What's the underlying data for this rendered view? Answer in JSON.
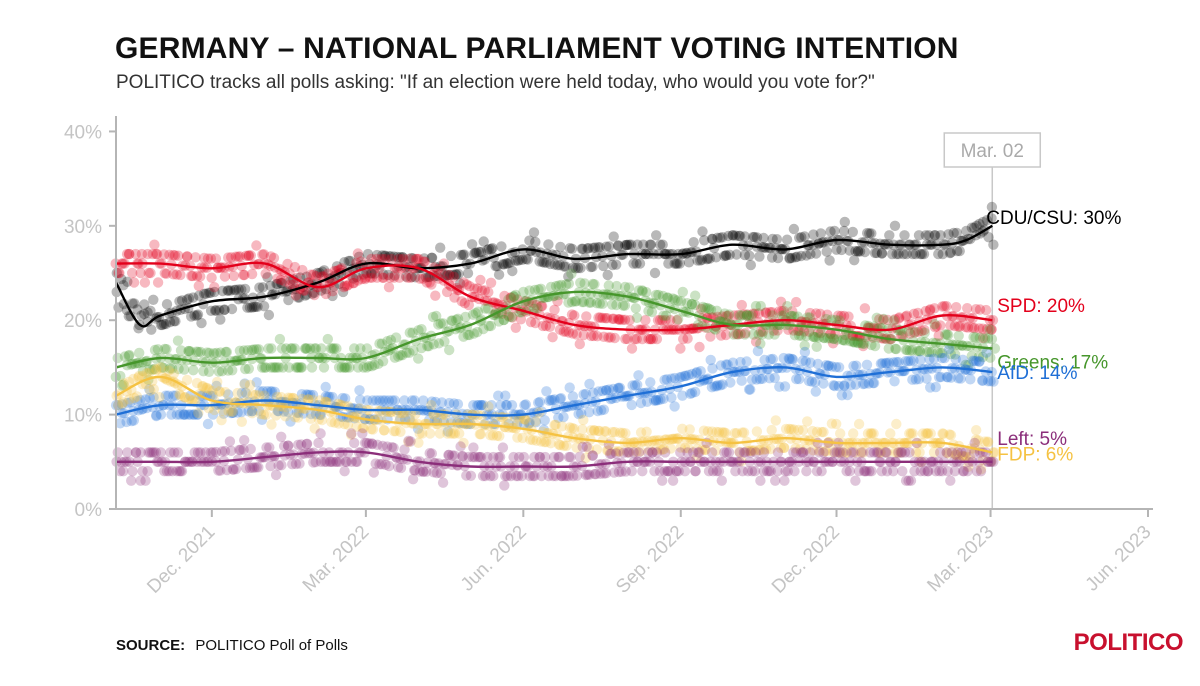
{
  "title": "GERMANY – NATIONAL PARLIAMENT VOTING INTENTION",
  "subtitle": "POLITICO tracks all polls asking: \"If an election were held today, who would you vote for?\"",
  "footer": {
    "source_label": "SOURCE:",
    "source_text": "POLITICO Poll of Polls"
  },
  "brand": "POLITICO",
  "chart_data": {
    "type": "line",
    "x_tick_labels": [
      "Dec. 2021",
      "Mar. 2022",
      "Jun. 2022",
      "Sep. 2022",
      "Dec. 2022",
      "Mar. 2023",
      "Jun. 2023"
    ],
    "x_tick_dates": [
      "2021-12-01",
      "2022-03-01",
      "2022-06-01",
      "2022-09-01",
      "2022-12-01",
      "2023-03-01",
      "2023-06-01"
    ],
    "xlim": [
      "2021-10-06",
      "2023-06-01"
    ],
    "y_tick_labels": [
      "0%",
      "10%",
      "20%",
      "30%",
      "40%"
    ],
    "y_ticks": [
      0,
      10,
      20,
      30,
      40
    ],
    "ylim": [
      0,
      41
    ],
    "marker": {
      "date": "2023-03-02",
      "label": "Mar. 02"
    },
    "series": [
      {
        "name": "CDU/CSU",
        "end_label": "CDU/CSU: 30%",
        "color": "#000000",
        "x": [
          "2021-10-06",
          "2021-10-20",
          "2021-11-01",
          "2021-12-01",
          "2022-01-01",
          "2022-02-01",
          "2022-03-01",
          "2022-04-01",
          "2022-05-01",
          "2022-06-01",
          "2022-07-01",
          "2022-08-01",
          "2022-09-01",
          "2022-10-01",
          "2022-11-01",
          "2022-12-01",
          "2023-01-01",
          "2023-02-01",
          "2023-02-15",
          "2023-03-02"
        ],
        "y": [
          24,
          19.5,
          20.5,
          22,
          22.5,
          24,
          26,
          25.5,
          26,
          27.5,
          26.5,
          27,
          27,
          28,
          27.5,
          28.5,
          28,
          28,
          28.5,
          30
        ]
      },
      {
        "name": "SPD",
        "end_label": "SPD: 20%",
        "color": "#e3001b",
        "x": [
          "2021-10-06",
          "2021-11-01",
          "2021-12-01",
          "2022-01-01",
          "2022-02-01",
          "2022-03-01",
          "2022-04-01",
          "2022-05-01",
          "2022-06-01",
          "2022-07-01",
          "2022-08-01",
          "2022-09-01",
          "2022-10-01",
          "2022-11-01",
          "2022-12-01",
          "2023-01-01",
          "2023-02-01",
          "2023-03-02"
        ],
        "y": [
          26,
          26,
          25.5,
          26,
          23.5,
          25.5,
          25.5,
          22.5,
          21,
          19.5,
          19,
          19,
          19.5,
          20,
          19.5,
          19,
          20.5,
          20
        ]
      },
      {
        "name": "Greens",
        "end_label": "Greens: 17%",
        "color": "#46962b",
        "x": [
          "2021-10-06",
          "2021-11-01",
          "2021-12-01",
          "2022-01-01",
          "2022-02-01",
          "2022-03-01",
          "2022-04-01",
          "2022-05-01",
          "2022-06-01",
          "2022-07-01",
          "2022-08-01",
          "2022-09-01",
          "2022-10-01",
          "2022-11-01",
          "2022-12-01",
          "2023-01-01",
          "2023-02-01",
          "2023-03-02"
        ],
        "y": [
          15,
          16,
          15.5,
          16,
          16,
          16,
          18,
          19.5,
          22,
          23,
          22.5,
          21,
          19.5,
          19.5,
          19,
          18,
          17.5,
          17
        ]
      },
      {
        "name": "AfD",
        "end_label": "AfD: 14%",
        "color": "#1f6fd6",
        "x": [
          "2021-10-06",
          "2021-11-01",
          "2021-12-01",
          "2022-01-01",
          "2022-02-01",
          "2022-03-01",
          "2022-04-01",
          "2022-05-01",
          "2022-06-01",
          "2022-07-01",
          "2022-08-01",
          "2022-09-01",
          "2022-10-01",
          "2022-11-01",
          "2022-12-01",
          "2023-01-01",
          "2023-02-01",
          "2023-03-02"
        ],
        "y": [
          10,
          11,
          11,
          11.5,
          11,
          10.5,
          10.5,
          10,
          10,
          11,
          12,
          13,
          14.5,
          15,
          14,
          14.5,
          15,
          14.5
        ]
      },
      {
        "name": "FDP",
        "end_label": "FDP: 6%",
        "color": "#f5c242",
        "x": [
          "2021-10-06",
          "2021-11-01",
          "2021-12-01",
          "2022-01-01",
          "2022-02-01",
          "2022-03-01",
          "2022-04-01",
          "2022-05-01",
          "2022-06-01",
          "2022-07-01",
          "2022-08-01",
          "2022-09-01",
          "2022-10-01",
          "2022-11-01",
          "2022-12-01",
          "2023-01-01",
          "2023-02-01",
          "2023-03-02"
        ],
        "y": [
          12,
          14,
          11.5,
          11,
          10.5,
          9.5,
          9,
          9,
          8.5,
          7.5,
          7,
          7.5,
          7,
          7.5,
          7,
          7,
          7,
          6
        ]
      },
      {
        "name": "Left",
        "end_label": "Left: 5%",
        "color": "#8b2e7a",
        "x": [
          "2021-10-06",
          "2021-11-01",
          "2021-12-01",
          "2022-01-01",
          "2022-02-01",
          "2022-03-01",
          "2022-04-01",
          "2022-05-01",
          "2022-06-01",
          "2022-07-01",
          "2022-08-01",
          "2022-09-01",
          "2022-10-01",
          "2022-11-01",
          "2022-12-01",
          "2023-01-01",
          "2023-02-01",
          "2023-03-02"
        ],
        "y": [
          5,
          5,
          5,
          5.5,
          6,
          6,
          5,
          4.5,
          4.5,
          4.5,
          5,
          5,
          5,
          5,
          5,
          5,
          5,
          5
        ]
      }
    ]
  }
}
